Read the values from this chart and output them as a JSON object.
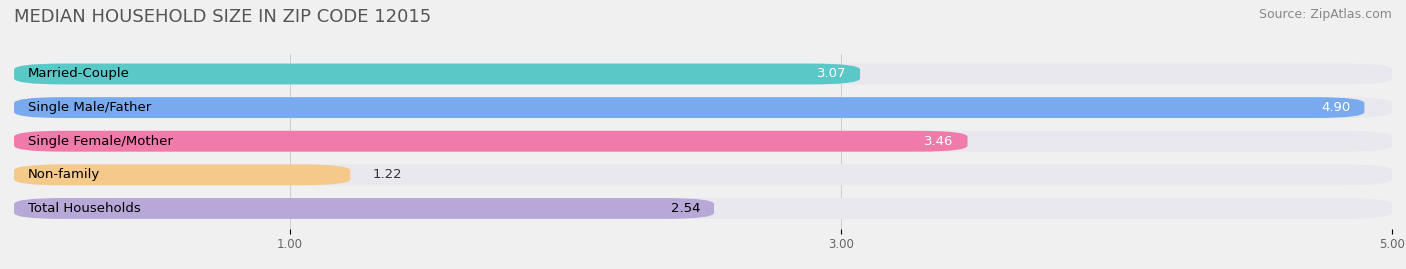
{
  "title": "MEDIAN HOUSEHOLD SIZE IN ZIP CODE 12015",
  "source": "Source: ZipAtlas.com",
  "categories": [
    "Married-Couple",
    "Single Male/Father",
    "Single Female/Mother",
    "Non-family",
    "Total Households"
  ],
  "values": [
    3.07,
    4.9,
    3.46,
    1.22,
    2.54
  ],
  "bar_colors": [
    "#5bc8c8",
    "#7aaaee",
    "#f07aaa",
    "#f5c98a",
    "#b8a8d8"
  ],
  "bar_edge_colors": [
    "#3aa8a8",
    "#5588cc",
    "#d05888",
    "#d8a868",
    "#9888b8"
  ],
  "xlim": [
    0,
    5.0
  ],
  "xticks": [
    1.0,
    3.0,
    5.0
  ],
  "label_color_inside": [
    "white",
    "white",
    "white",
    "black",
    "black"
  ],
  "background_color": "#f0f0f0",
  "bar_bg_color": "#e8e8ee",
  "title_fontsize": 13,
  "label_fontsize": 9.5,
  "value_fontsize": 9.5,
  "source_fontsize": 9
}
